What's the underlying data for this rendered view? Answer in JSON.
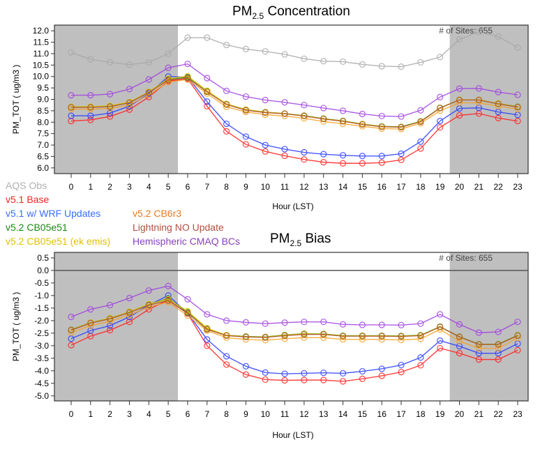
{
  "chart_data": [
    {
      "type": "line",
      "title": "PM",
      "title_sub": "2.5",
      "title_rest": " Concentration",
      "xlabel": "Hour (LST)",
      "ylabel": "PM_TOT ( ug/m3 )",
      "annotation": "# of Sites: 655",
      "ylim": [
        5.75,
        12.25
      ],
      "yticks": [
        6.0,
        6.5,
        7.0,
        7.5,
        8.0,
        8.5,
        9.0,
        9.5,
        10.0,
        10.5,
        11.0,
        11.5,
        12.0
      ],
      "x": [
        0,
        1,
        2,
        3,
        4,
        5,
        6,
        7,
        8,
        9,
        10,
        11,
        12,
        13,
        14,
        15,
        16,
        17,
        18,
        19,
        20,
        21,
        22,
        23
      ],
      "shaded_hours": [
        [
          -1,
          5.5
        ],
        [
          19.5,
          24
        ]
      ],
      "series": [
        {
          "name": "AQS Obs",
          "color": "#a8a8a8",
          "values": [
            11.05,
            10.75,
            10.62,
            10.52,
            10.62,
            11.0,
            11.7,
            11.7,
            11.38,
            11.2,
            11.1,
            10.97,
            10.78,
            10.67,
            10.65,
            10.53,
            10.45,
            10.43,
            10.62,
            10.85,
            11.62,
            11.95,
            11.75,
            11.27
          ]
        },
        {
          "name": "v5.1 Base",
          "color": "#ff2020",
          "values": [
            8.05,
            8.1,
            8.25,
            8.55,
            9.1,
            9.8,
            9.9,
            8.7,
            7.6,
            7.03,
            6.72,
            6.53,
            6.37,
            6.25,
            6.2,
            6.2,
            6.23,
            6.35,
            6.85,
            7.77,
            8.3,
            8.38,
            8.18,
            8.05
          ]
        },
        {
          "name": "v5.1 w/ WRF Updates",
          "color": "#2a3cff",
          "values": [
            8.28,
            8.28,
            8.4,
            8.7,
            9.25,
            10.0,
            9.97,
            8.9,
            7.93,
            7.37,
            7.0,
            6.82,
            6.68,
            6.6,
            6.55,
            6.52,
            6.52,
            6.62,
            7.15,
            8.05,
            8.6,
            8.63,
            8.45,
            8.32
          ]
        },
        {
          "name": "v5.2 CB6r3",
          "color": "#f5a020",
          "values": [
            8.57,
            8.57,
            8.6,
            8.75,
            9.2,
            9.75,
            9.87,
            9.25,
            8.67,
            8.45,
            8.33,
            8.27,
            8.17,
            8.03,
            7.93,
            7.82,
            7.72,
            7.7,
            7.95,
            8.5,
            8.85,
            8.85,
            8.7,
            8.57
          ]
        },
        {
          "name": "v5.2 CB05e51",
          "color": "#2a9a10",
          "values": [
            8.67,
            8.67,
            8.7,
            8.87,
            9.32,
            9.88,
            9.97,
            9.35,
            8.8,
            8.55,
            8.44,
            8.38,
            8.29,
            8.16,
            8.06,
            7.92,
            7.82,
            7.8,
            8.04,
            8.63,
            8.98,
            8.98,
            8.82,
            8.68
          ]
        },
        {
          "name": "v5.2 CB05e51 (ek emis)",
          "color": "#e8c800",
          "values": [
            8.68,
            8.68,
            8.72,
            8.88,
            9.33,
            9.9,
            10.02,
            9.38,
            8.8,
            8.55,
            8.44,
            8.38,
            8.28,
            8.15,
            8.05,
            7.92,
            7.81,
            7.79,
            8.03,
            8.62,
            8.98,
            8.98,
            8.82,
            8.67
          ]
        },
        {
          "name": "Lightning NO Update",
          "color": "#b05030",
          "values": [
            8.65,
            8.65,
            8.68,
            8.85,
            9.3,
            9.85,
            9.93,
            9.33,
            8.77,
            8.52,
            8.42,
            8.37,
            8.27,
            8.14,
            8.04,
            7.9,
            7.8,
            7.78,
            8.02,
            8.62,
            8.97,
            8.97,
            8.8,
            8.66
          ]
        },
        {
          "name": "Hemispheric CMAQ BCs",
          "color": "#a040e0",
          "values": [
            9.18,
            9.18,
            9.23,
            9.45,
            9.87,
            10.38,
            10.55,
            9.93,
            9.37,
            9.12,
            8.97,
            8.87,
            8.75,
            8.62,
            8.5,
            8.36,
            8.27,
            8.25,
            8.52,
            9.1,
            9.47,
            9.48,
            9.32,
            9.2
          ]
        }
      ]
    },
    {
      "type": "line",
      "title": "PM",
      "title_sub": "2.5",
      "title_rest": " Bias",
      "xlabel": "Hour (LST)",
      "ylabel": "PM_TOT ( ug/m3 )",
      "annotation": "# of Sites: 655",
      "ylim": [
        -5.2,
        0.72
      ],
      "yticks": [
        -5.0,
        -4.5,
        -4.0,
        -3.5,
        -3.0,
        -2.5,
        -2.0,
        -1.5,
        -1.0,
        -0.5,
        0.0,
        0.5
      ],
      "hline": 0,
      "x": [
        0,
        1,
        2,
        3,
        4,
        5,
        6,
        7,
        8,
        9,
        10,
        11,
        12,
        13,
        14,
        15,
        16,
        17,
        18,
        19,
        20,
        21,
        22,
        23
      ],
      "shaded_hours": [
        [
          -1,
          5.5
        ],
        [
          19.5,
          24
        ]
      ],
      "series": [
        {
          "name": "v5.1 Base",
          "color": "#ff2020",
          "values": [
            -2.98,
            -2.62,
            -2.38,
            -2.05,
            -1.55,
            -1.18,
            -1.72,
            -3.0,
            -3.75,
            -4.15,
            -4.35,
            -4.38,
            -4.37,
            -4.37,
            -4.42,
            -4.32,
            -4.2,
            -4.05,
            -3.78,
            -3.1,
            -3.3,
            -3.55,
            -3.55,
            -3.18
          ]
        },
        {
          "name": "v5.1 w/ WRF Updates",
          "color": "#2a3cff",
          "values": [
            -2.72,
            -2.4,
            -2.2,
            -1.85,
            -1.38,
            -1.0,
            -1.7,
            -2.75,
            -3.42,
            -3.82,
            -4.07,
            -4.12,
            -4.1,
            -4.08,
            -4.1,
            -4.02,
            -3.92,
            -3.77,
            -3.47,
            -2.8,
            -3.02,
            -3.3,
            -3.3,
            -2.92
          ]
        },
        {
          "name": "v5.2 CB6r3",
          "color": "#f5a020",
          "values": [
            -2.48,
            -2.2,
            -2.03,
            -1.78,
            -1.45,
            -1.27,
            -1.8,
            -2.4,
            -2.68,
            -2.75,
            -2.78,
            -2.72,
            -2.68,
            -2.68,
            -2.75,
            -2.75,
            -2.75,
            -2.77,
            -2.73,
            -2.35,
            -2.82,
            -3.1,
            -3.1,
            -2.7
          ]
        },
        {
          "name": "v5.2 CB05e51",
          "color": "#2a9a10",
          "values": [
            -2.36,
            -2.08,
            -1.9,
            -1.65,
            -1.35,
            -1.12,
            -1.66,
            -2.32,
            -2.58,
            -2.63,
            -2.65,
            -2.57,
            -2.52,
            -2.53,
            -2.6,
            -2.6,
            -2.6,
            -2.61,
            -2.58,
            -2.24,
            -2.64,
            -2.94,
            -2.94,
            -2.58
          ]
        },
        {
          "name": "v5.2 CB05e51 (ek emis)",
          "color": "#e8c800",
          "values": [
            -2.37,
            -2.08,
            -1.9,
            -1.65,
            -1.34,
            -1.15,
            -1.62,
            -2.3,
            -2.58,
            -2.64,
            -2.66,
            -2.58,
            -2.53,
            -2.54,
            -2.61,
            -2.61,
            -2.61,
            -2.62,
            -2.59,
            -2.25,
            -2.65,
            -2.95,
            -2.95,
            -2.59
          ]
        },
        {
          "name": "Lightning NO Update",
          "color": "#b05030",
          "values": [
            -2.38,
            -2.1,
            -1.93,
            -1.68,
            -1.38,
            -1.2,
            -1.7,
            -2.35,
            -2.6,
            -2.65,
            -2.67,
            -2.6,
            -2.55,
            -2.55,
            -2.62,
            -2.62,
            -2.62,
            -2.63,
            -2.6,
            -2.25,
            -2.65,
            -2.95,
            -2.95,
            -2.6
          ]
        },
        {
          "name": "Hemispheric CMAQ BCs",
          "color": "#a040e0",
          "values": [
            -1.85,
            -1.55,
            -1.38,
            -1.1,
            -0.8,
            -0.62,
            -1.15,
            -1.75,
            -2.0,
            -2.07,
            -2.12,
            -2.08,
            -2.05,
            -2.05,
            -2.15,
            -2.17,
            -2.17,
            -2.18,
            -2.12,
            -1.75,
            -2.15,
            -2.48,
            -2.45,
            -2.05
          ]
        }
      ]
    }
  ],
  "legend": [
    {
      "label": "AQS Obs",
      "color": "#b0b0b0"
    },
    {
      "label": "v5.1 Base",
      "color": "#ff2020"
    },
    {
      "label": "v5.1 w/ WRF Updates",
      "color": "#3a6cff"
    },
    {
      "label": "v5.2 CB6r3",
      "color": "#e87a20"
    },
    {
      "label": "v5.2 CB05e51",
      "color": "#1a8a10"
    },
    {
      "label": "Lightning NO Update",
      "color": "#b05040"
    },
    {
      "label": "v5.2 CB05e51 (ek emis)",
      "color": "#e0c000"
    },
    {
      "label": "Hemispheric CMAQ BCs",
      "color": "#8a40c0"
    }
  ]
}
